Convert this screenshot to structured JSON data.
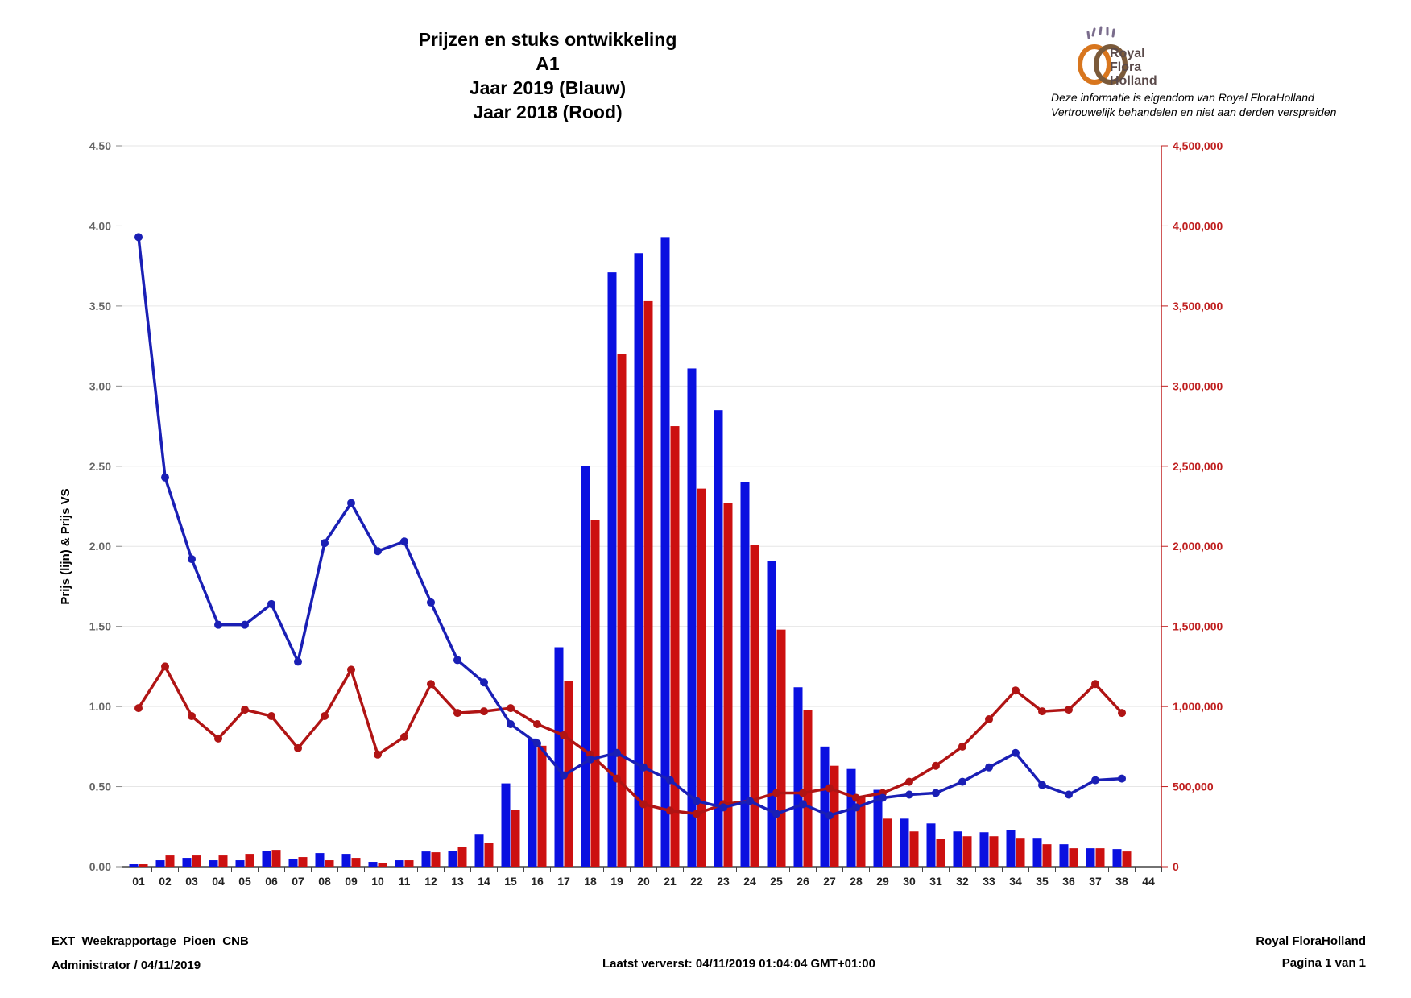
{
  "header": {
    "title_lines": [
      "Prijzen en stuks ontwikkeling",
      "A1",
      "Jaar 2019 (Blauw)",
      "Jaar 2018 (Rood)"
    ],
    "logo_text": [
      "Royal",
      "Flora",
      "Holland"
    ],
    "disclaimer": [
      "Deze informatie is eigendom van Royal FloraHolland",
      "Vertrouwelijk behandelen en niet aan derden verspreiden"
    ]
  },
  "footer": {
    "report_name": "EXT_Weekrapportage_Pioen_CNB",
    "admin_date": "Administrator / 04/11/2019",
    "last_refreshed": "Laatst ververst: 04/11/2019 01:04:04 GMT+01:00",
    "organization": "Royal FloraHolland",
    "page": "Pagina 1 van 1"
  },
  "colors": {
    "blue": "#0a10e0",
    "red": "#cc1010",
    "line_blue": "#1a1fb5",
    "line_red": "#b01414",
    "axis_left": "#666666",
    "axis_right": "#c02020"
  },
  "chart_data": {
    "type": "bar+line",
    "ylabel": "Prijs (lijn) & Prijs VS",
    "categories": [
      "01",
      "02",
      "03",
      "04",
      "05",
      "06",
      "07",
      "08",
      "09",
      "10",
      "11",
      "12",
      "13",
      "14",
      "15",
      "16",
      "17",
      "18",
      "19",
      "20",
      "21",
      "22",
      "23",
      "24",
      "25",
      "26",
      "27",
      "28",
      "29",
      "30",
      "31",
      "32",
      "33",
      "34",
      "35",
      "36",
      "37",
      "38",
      "44"
    ],
    "y_left": {
      "min": 0,
      "max": 4.5,
      "ticks": [
        "0.00",
        "0.50",
        "1.00",
        "1.50",
        "2.00",
        "2.50",
        "3.00",
        "3.50",
        "4.00",
        "4.50"
      ]
    },
    "y_right": {
      "min": 0,
      "max": 4500000,
      "ticks": [
        "0",
        "500,000",
        "1,000,000",
        "1,500,000",
        "2,000,000",
        "2,500,000",
        "3,000,000",
        "3,500,000",
        "4,000,000",
        "4,500,000"
      ]
    },
    "bars_2019": [
      15000,
      40000,
      55000,
      40000,
      40000,
      100000,
      50000,
      85000,
      80000,
      30000,
      40000,
      95000,
      100000,
      200000,
      520000,
      800000,
      1370000,
      2500000,
      3710000,
      3830000,
      3930000,
      3110000,
      2850000,
      2400000,
      1910000,
      1120000,
      750000,
      610000,
      480000,
      300000,
      270000,
      220000,
      215000,
      230000,
      180000,
      140000,
      115000,
      110000,
      null
    ],
    "bars_2018": [
      15000,
      70000,
      70000,
      70000,
      80000,
      105000,
      60000,
      40000,
      55000,
      25000,
      40000,
      90000,
      125000,
      150000,
      355000,
      755000,
      1160000,
      2165000,
      3200000,
      3530000,
      2750000,
      2360000,
      2270000,
      2010000,
      1480000,
      980000,
      630000,
      440000,
      300000,
      220000,
      175000,
      190000,
      190000,
      180000,
      140000,
      115000,
      115000,
      95000,
      null
    ],
    "line_2019": [
      3.93,
      2.43,
      1.92,
      1.51,
      1.51,
      1.64,
      1.28,
      2.02,
      2.27,
      1.97,
      2.03,
      1.65,
      1.29,
      1.15,
      0.89,
      0.77,
      0.57,
      0.67,
      0.71,
      0.62,
      0.54,
      0.41,
      0.37,
      0.41,
      0.33,
      0.39,
      0.32,
      0.37,
      0.43,
      0.45,
      0.46,
      0.53,
      0.62,
      0.71,
      0.51,
      0.45,
      0.54,
      0.55,
      null
    ],
    "line_2018": [
      0.99,
      1.25,
      0.94,
      0.8,
      0.98,
      0.94,
      0.74,
      0.94,
      1.23,
      0.7,
      0.81,
      1.14,
      0.96,
      0.97,
      0.99,
      0.89,
      0.82,
      0.7,
      0.55,
      0.39,
      0.35,
      0.33,
      0.39,
      0.41,
      0.46,
      0.46,
      0.49,
      0.43,
      0.46,
      0.53,
      0.63,
      0.75,
      0.92,
      1.1,
      0.97,
      0.98,
      1.14,
      0.96,
      null
    ]
  }
}
